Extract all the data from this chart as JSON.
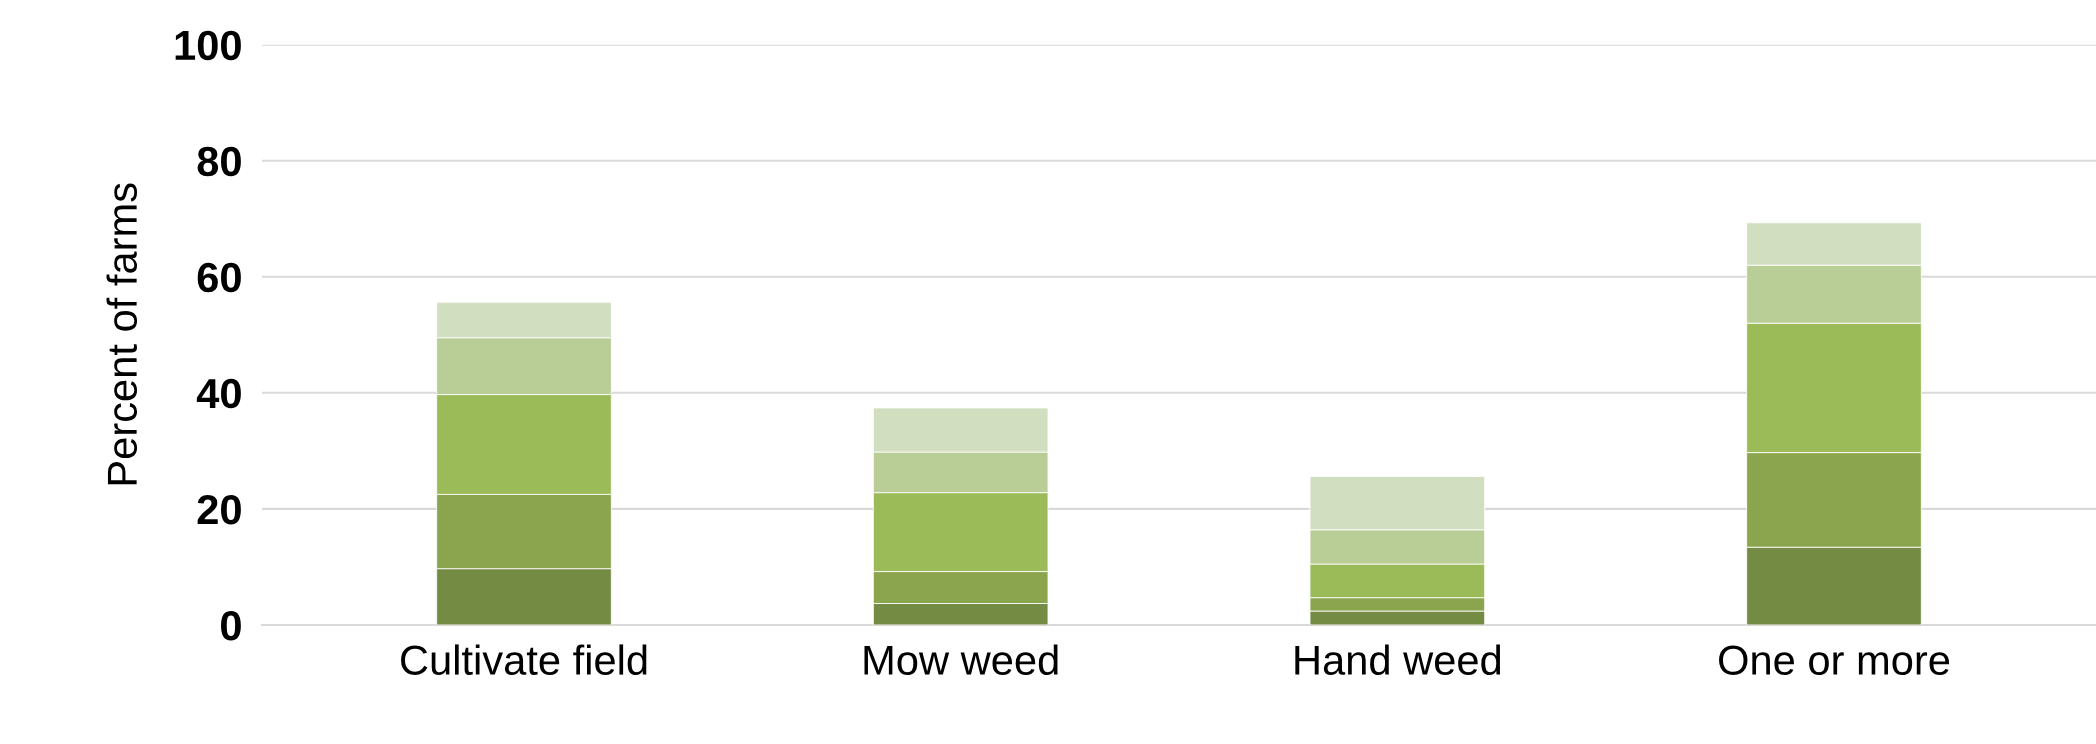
{
  "chart_data": {
    "type": "bar",
    "stacked": true,
    "ylabel": "Percent of farms",
    "categories": [
      "Cultivate field",
      "Mow weed",
      "Hand weed",
      "One or more"
    ],
    "series": [
      {
        "color": "#748b44",
        "values": [
          9.7,
          3.7,
          2.4,
          13.4
        ]
      },
      {
        "color": "#8aa54e",
        "values": [
          12.8,
          5.5,
          2.3,
          16.3
        ]
      },
      {
        "color": "#9bbb59",
        "values": [
          17.2,
          13.6,
          5.8,
          22.3
        ]
      },
      {
        "color": "#b9cd96",
        "values": [
          9.8,
          7.0,
          5.9,
          10.0
        ]
      },
      {
        "color": "#d1dfc0",
        "values": [
          6.1,
          7.6,
          9.2,
          7.3
        ]
      }
    ],
    "ylim": [
      0,
      100
    ],
    "yticks": [
      0,
      20,
      40,
      60,
      80,
      100
    ],
    "grid": "y"
  }
}
